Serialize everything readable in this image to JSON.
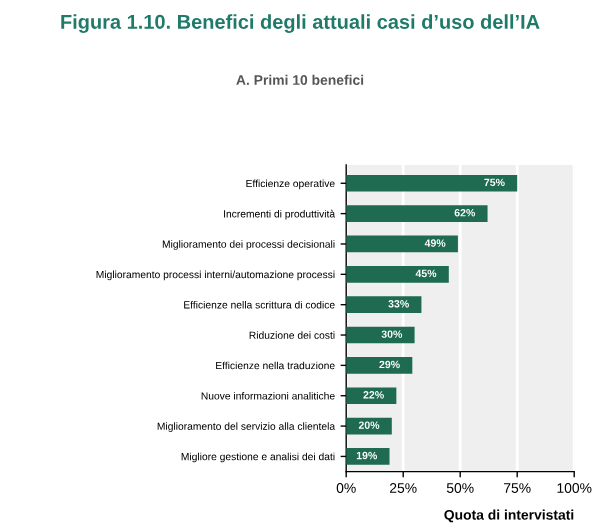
{
  "chart_data": {
    "type": "bar",
    "orientation": "horizontal",
    "title": "Figura 1.10. Benefici degli attuali casi d’uso dell’IA",
    "subtitle": "A. Primi 10 benefici",
    "xlabel": "Quota di intervistati",
    "categories": [
      "Efficienze operative",
      "Incrementi di produttività",
      "Miglioramento dei processi decisionali",
      "Miglioramento processi interni/automazione processi",
      "Efficienze nella scrittura di codice",
      "Riduzione dei costi",
      "Efficienze nella traduzione",
      "Nuove informazioni analitiche",
      "Miglioramento del servizio alla clientela",
      "Migliore gestione e analisi dei dati"
    ],
    "values": [
      75,
      62,
      49,
      45,
      33,
      30,
      29,
      22,
      20,
      19
    ],
    "value_labels": [
      "75%",
      "62%",
      "49%",
      "45%",
      "33%",
      "30%",
      "29%",
      "22%",
      "20%",
      "19%"
    ],
    "color": "#1e6b52",
    "xlim": [
      0,
      100
    ],
    "xticks": [
      {
        "value": 0,
        "label": "0%"
      },
      {
        "value": 25,
        "label": "25%"
      },
      {
        "value": 50,
        "label": "50%"
      },
      {
        "value": 75,
        "label": "75%"
      },
      {
        "value": 100,
        "label": "100%"
      }
    ],
    "grid": "x"
  }
}
